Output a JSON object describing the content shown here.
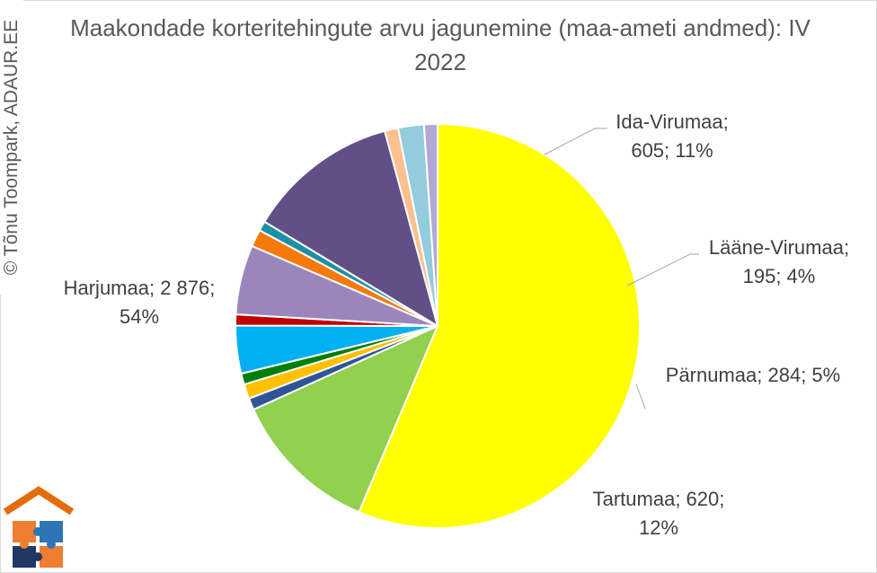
{
  "chart_data": {
    "type": "pie",
    "title": "Maakondade korteritehingute arvu jagunemine (maa-ameti andmed): IV 2022",
    "slices": [
      {
        "value": 2876,
        "percent": 54,
        "color": "#ffff00",
        "label_lines": [
          "Harjumaa; 2 876;",
          "54%"
        ]
      },
      {
        "value": 605,
        "percent": 11,
        "color": "#92d050",
        "label_lines": [
          "Ida-Virumaa;",
          "605; 11%"
        ]
      },
      {
        "value": 48,
        "color": "#2f5597",
        "label_lines": []
      },
      {
        "value": 60,
        "color": "#ffc000",
        "label_lines": []
      },
      {
        "value": 45,
        "color": "#00800a",
        "label_lines": []
      },
      {
        "value": 195,
        "percent": 4,
        "color": "#00b0f0",
        "label_lines": [
          "Lääne-Virumaa;",
          "195; 4%"
        ]
      },
      {
        "value": 45,
        "color": "#c00000",
        "label_lines": []
      },
      {
        "value": 284,
        "percent": 5,
        "color": "#9b86bc",
        "label_lines": [
          "Pärnumaa; 284; 5%"
        ]
      },
      {
        "value": 70,
        "color": "#f57a0d",
        "label_lines": []
      },
      {
        "value": 40,
        "color": "#1f8fa6",
        "label_lines": []
      },
      {
        "value": 620,
        "percent": 12,
        "color": "#634f87",
        "label_lines": [
          "Tartumaa; 620;",
          "12%"
        ]
      },
      {
        "value": 55,
        "color": "#fac090",
        "label_lines": []
      },
      {
        "value": 105,
        "color": "#93cddd",
        "label_lines": []
      },
      {
        "value": 55,
        "color": "#b4a7d6",
        "label_lines": []
      }
    ]
  },
  "watermark": "© Tõnu Toompark, ADAUR.EE",
  "logo": {
    "colors": [
      "#e46c0a",
      "#ed7d31",
      "#2e75b6",
      "#203864"
    ]
  }
}
